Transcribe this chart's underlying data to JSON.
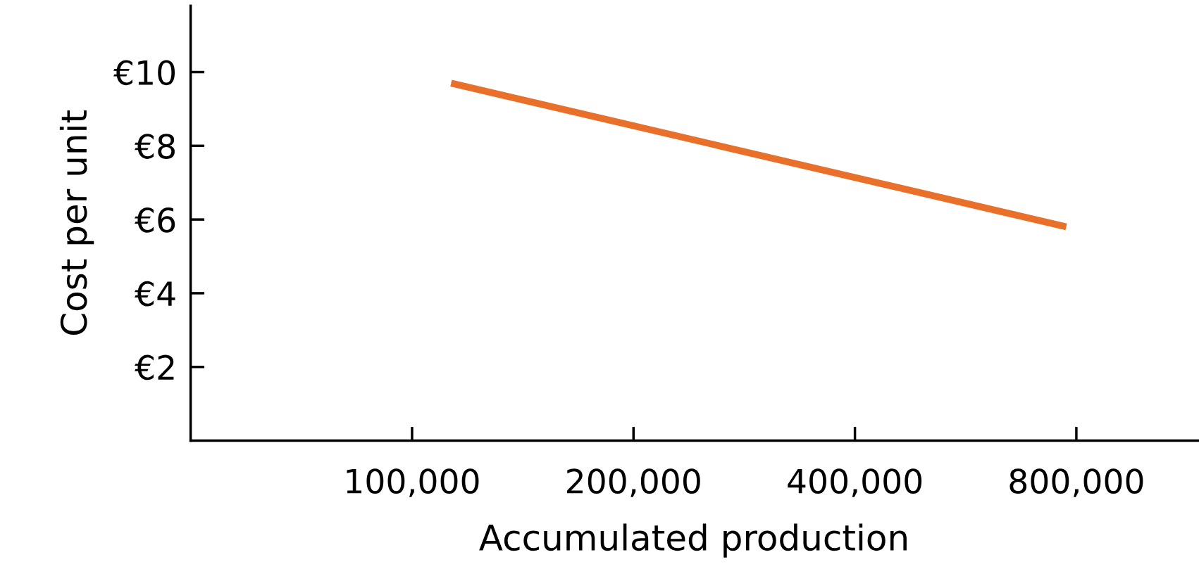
{
  "chart_data": {
    "type": "line",
    "xlabel": "Accumulated production",
    "ylabel": "Cost per unit",
    "log": "x",
    "x": [
      113000,
      775000
    ],
    "series": [
      {
        "color": "#e8702a",
        "values": [
          9.7,
          5.8
        ]
      }
    ],
    "xlim": [
      50000,
      1170000
    ],
    "xticks": [
      {
        "value": 100000,
        "label": "100,000"
      },
      {
        "value": 200000,
        "label": "200,000"
      },
      {
        "value": 400000,
        "label": "400,000"
      },
      {
        "value": 800000,
        "label": "800,000"
      }
    ],
    "ylim": [
      0,
      11.8
    ],
    "yticks": [
      {
        "value": 2,
        "label": "€2"
      },
      {
        "value": 4,
        "label": "€4"
      },
      {
        "value": 6,
        "label": "€6"
      },
      {
        "value": 8,
        "label": "€8"
      },
      {
        "value": 10,
        "label": "€10"
      }
    ],
    "grid": false,
    "legend": false,
    "marker": "none",
    "line_style": "solid"
  }
}
